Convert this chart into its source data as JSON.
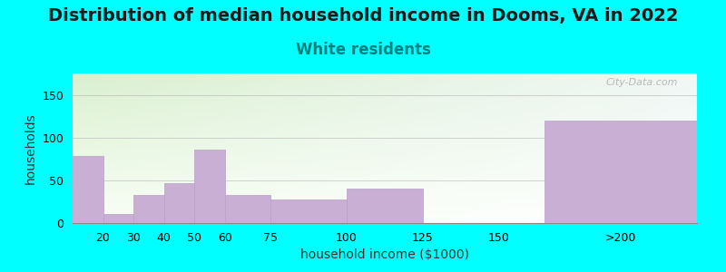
{
  "title": "Distribution of median household income in Dooms, VA in 2022",
  "subtitle": "White residents",
  "xlabel": "household income ($1000)",
  "ylabel": "households",
  "background_color": "#00FFFF",
  "bar_color": "#c9afd4",
  "bar_edge_color": "#b8a0c8",
  "categories": [
    "20",
    "30",
    "40",
    "50",
    "60",
    "75",
    "100",
    "125",
    "150",
    ">200"
  ],
  "left_edges": [
    10,
    20,
    30,
    40,
    50,
    60,
    75,
    100,
    125,
    165
  ],
  "widths": [
    10,
    10,
    10,
    10,
    10,
    15,
    25,
    25,
    25,
    50
  ],
  "values": [
    78,
    11,
    33,
    47,
    86,
    33,
    28,
    40,
    0,
    120
  ],
  "xlim": [
    10,
    215
  ],
  "ylim": [
    0,
    175
  ],
  "yticks": [
    0,
    50,
    100,
    150
  ],
  "xtick_positions": [
    20,
    30,
    40,
    50,
    60,
    75,
    100,
    125,
    150,
    190
  ],
  "xtick_labels": [
    "20",
    "30",
    "40",
    "50",
    "60",
    "75",
    "100",
    "125",
    "150",
    ">200"
  ],
  "title_fontsize": 14,
  "subtitle_fontsize": 12,
  "subtitle_color": "#008080",
  "axis_label_fontsize": 10,
  "tick_fontsize": 9,
  "watermark": "City-Data.com",
  "gradient_top_color": "#daf0d0",
  "gradient_bottom_color": "#f8fff5",
  "gradient_right_color": "#f0f8f0"
}
